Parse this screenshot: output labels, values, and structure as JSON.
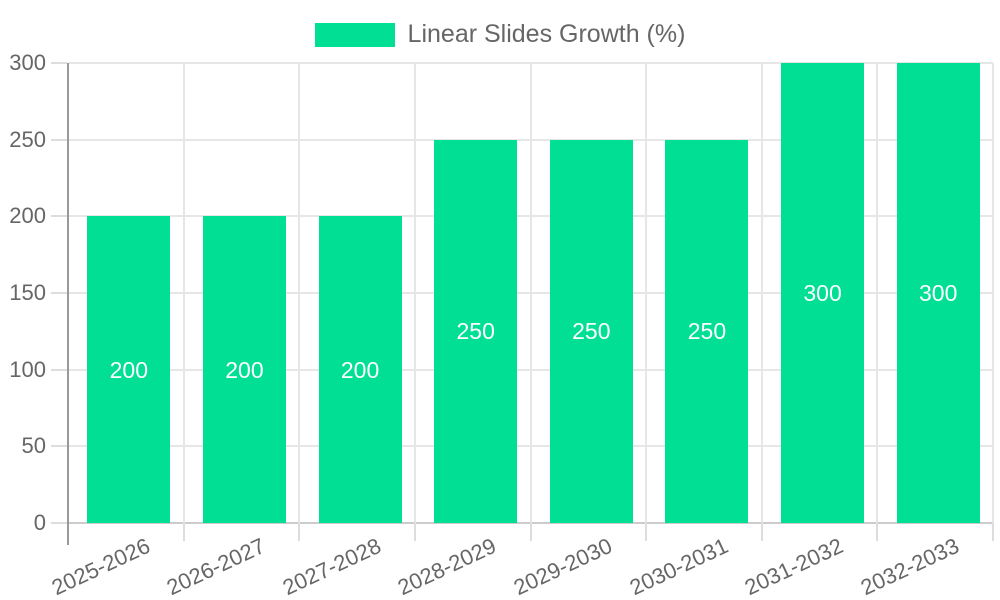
{
  "legend": {
    "label": "Linear Slides Growth (%)"
  },
  "colors": {
    "bar": "#00DF93",
    "bar_label_text": "#ffffff",
    "axis_text": "#666666",
    "grid": "#e6e6e6",
    "axis_line": "#999999",
    "tick_mark": "#dddddd",
    "bottom_line": "#cccccc",
    "background": "#ffffff"
  },
  "chart_data": {
    "type": "bar",
    "title": "Linear Slides Growth (%)",
    "categories": [
      "2025-2026",
      "2026-2027",
      "2027-2028",
      "2028-2029",
      "2029-2030",
      "2030-2031",
      "2031-2032",
      "2032-2033"
    ],
    "series": [
      {
        "name": "Linear Slides Growth (%)",
        "values": [
          200,
          200,
          200,
          250,
          250,
          250,
          300,
          300
        ]
      }
    ],
    "values": [
      200,
      200,
      200,
      250,
      250,
      250,
      300,
      300
    ],
    "value_labels": [
      "200",
      "200",
      "200",
      "250",
      "250",
      "250",
      "300",
      "300"
    ],
    "value_labels_position": "inside-center",
    "xlabel": "",
    "ylabel": "",
    "ylim": [
      0,
      300
    ],
    "yticks": [
      0,
      50,
      100,
      150,
      200,
      250,
      300
    ],
    "ytick_labels": [
      "0",
      "50",
      "100",
      "150",
      "200",
      "250",
      "300"
    ],
    "grid": true,
    "legend_position": "top",
    "x_label_rotation_deg": -25
  }
}
